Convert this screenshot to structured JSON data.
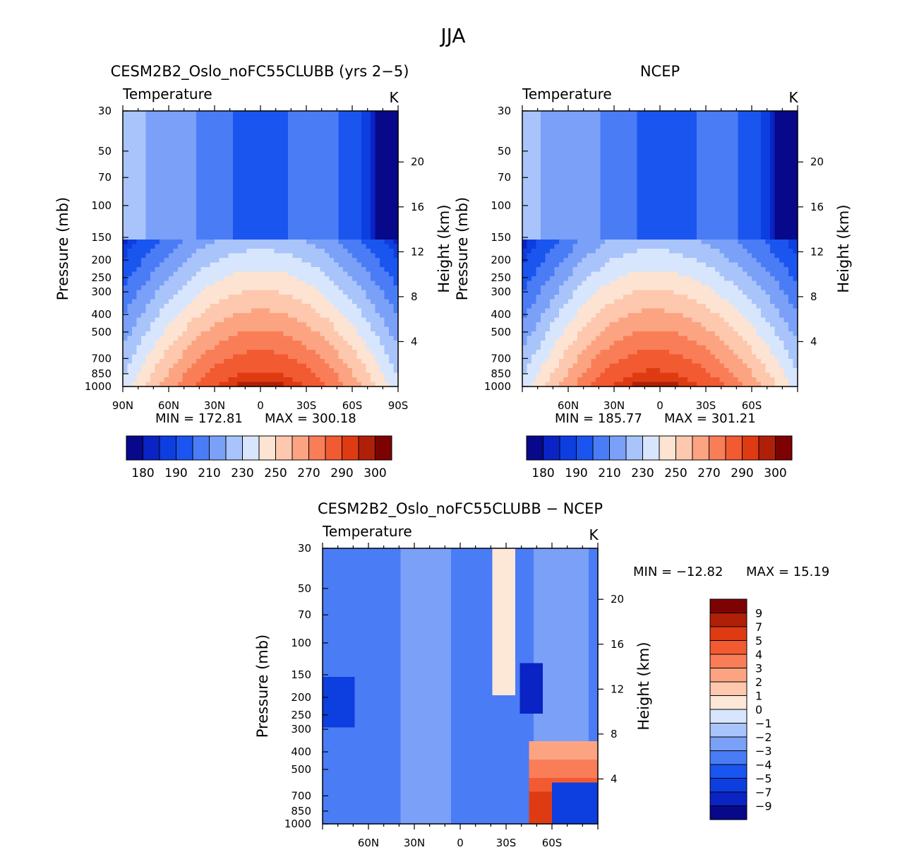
{
  "figure": {
    "title": "JJA",
    "colors": {
      "abs_levels": [
        "#08088a",
        "#0a23c4",
        "#0d3ee0",
        "#1a55f0",
        "#4a7cf5",
        "#7aa0f8",
        "#a9c4fa",
        "#d7e6fc",
        "#fde3d2",
        "#fdc8ad",
        "#fca482",
        "#f97e58",
        "#f25a32",
        "#de3b13",
        "#b02008",
        "#7d0303"
      ],
      "diff_levels": [
        "#08088a",
        "#0a23c4",
        "#0d3ee0",
        "#1a55f0",
        "#4a7cf5",
        "#7aa0f8",
        "#a9c4fa",
        "#d7e6fc",
        "#fde8d8",
        "#fdc8ad",
        "#fca482",
        "#f97e58",
        "#f25a32",
        "#de3b13",
        "#b02008",
        "#7d0303"
      ],
      "missing": "#ffffff"
    }
  },
  "chart_data": [
    {
      "type": "heatmap",
      "title": "CESM2B2_Oslo_noFC55CLUBB (yrs 2−5)",
      "variable": "Temperature",
      "units": "K",
      "xlabel": "",
      "ylabel": "Pressure (mb)",
      "ylabel_right": "Height (km)",
      "x_ticks": [
        "90N",
        "60N",
        "30N",
        "0",
        "30S",
        "60S",
        "90S"
      ],
      "x_tick_values": [
        90,
        60,
        30,
        0,
        -30,
        -60,
        -90
      ],
      "y_ticks": [
        30,
        50,
        70,
        100,
        150,
        200,
        250,
        300,
        400,
        500,
        700,
        850,
        1000
      ],
      "y_ticks_right": [
        20,
        16,
        12,
        8,
        4
      ],
      "xlim": [
        90,
        -90
      ],
      "ylim": [
        30,
        1000
      ],
      "min_label": "MIN = 172.81",
      "max_label": "MAX = 300.18",
      "min": 172.81,
      "max": 300.18,
      "colorbar_labels": [
        "180",
        "190",
        "210",
        "230",
        "250",
        "270",
        "290",
        "300"
      ],
      "colorbar_levels": 16
    },
    {
      "type": "heatmap",
      "title": "NCEP",
      "variable": "Temperature",
      "units": "K",
      "xlabel": "",
      "ylabel": "Pressure (mb)",
      "ylabel_right": "Height (km)",
      "x_ticks": [
        "60N",
        "30N",
        "0",
        "30S",
        "60S"
      ],
      "x_tick_values": [
        60,
        30,
        0,
        -30,
        -60
      ],
      "y_ticks": [
        30,
        50,
        70,
        100,
        150,
        200,
        250,
        300,
        400,
        500,
        700,
        850,
        1000
      ],
      "y_ticks_right": [
        20,
        16,
        12,
        8,
        4
      ],
      "xlim": [
        90,
        -90
      ],
      "ylim": [
        30,
        1000
      ],
      "min_label": "MIN = 185.77",
      "max_label": "MAX = 301.21",
      "min": 185.77,
      "max": 301.21,
      "colorbar_labels": [
        "180",
        "190",
        "210",
        "230",
        "250",
        "270",
        "290",
        "300"
      ],
      "colorbar_levels": 16
    },
    {
      "type": "heatmap",
      "title": "CESM2B2_Oslo_noFC55CLUBB − NCEP",
      "variable": "Temperature",
      "units": "K",
      "xlabel": "",
      "ylabel": "Pressure (mb)",
      "ylabel_right": "Height (km)",
      "x_ticks": [
        "60N",
        "30N",
        "0",
        "30S",
        "60S"
      ],
      "x_tick_values": [
        60,
        30,
        0,
        -30,
        -60
      ],
      "y_ticks": [
        30,
        50,
        70,
        100,
        150,
        200,
        250,
        300,
        400,
        500,
        700,
        850,
        1000
      ],
      "y_ticks_right": [
        20,
        16,
        12,
        8,
        4
      ],
      "xlim": [
        90,
        -90
      ],
      "ylim": [
        30,
        1000
      ],
      "min_label": "MIN = −12.82",
      "max_label": "MAX = 15.19",
      "min": -12.82,
      "max": 15.19,
      "colorbar_labels": [
        "9",
        "7",
        "5",
        "4",
        "3",
        "2",
        "1",
        "0",
        "−1",
        "−2",
        "−3",
        "−4",
        "−5",
        "−7",
        "−9"
      ],
      "colorbar_levels": 16
    }
  ]
}
